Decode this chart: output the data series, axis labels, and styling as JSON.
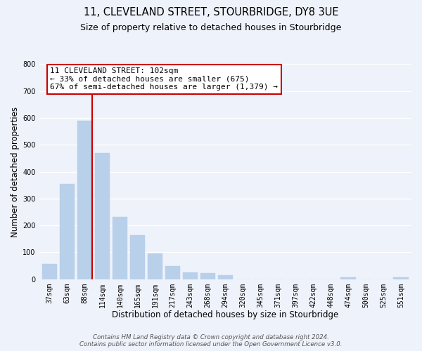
{
  "title": "11, CLEVELAND STREET, STOURBRIDGE, DY8 3UE",
  "subtitle": "Size of property relative to detached houses in Stourbridge",
  "xlabel": "Distribution of detached houses by size in Stourbridge",
  "ylabel": "Number of detached properties",
  "bar_labels": [
    "37sqm",
    "63sqm",
    "88sqm",
    "114sqm",
    "140sqm",
    "165sqm",
    "191sqm",
    "217sqm",
    "243sqm",
    "268sqm",
    "294sqm",
    "320sqm",
    "345sqm",
    "371sqm",
    "397sqm",
    "422sqm",
    "448sqm",
    "474sqm",
    "500sqm",
    "525sqm",
    "551sqm"
  ],
  "bar_values": [
    58,
    355,
    590,
    470,
    232,
    163,
    95,
    48,
    26,
    22,
    16,
    0,
    0,
    0,
    0,
    0,
    0,
    8,
    0,
    0,
    8
  ],
  "bar_color": "#b8d0ea",
  "vline_color": "#cc0000",
  "vline_bar_index": 2,
  "ylim": [
    0,
    800
  ],
  "yticks": [
    0,
    100,
    200,
    300,
    400,
    500,
    600,
    700,
    800
  ],
  "annotation_title": "11 CLEVELAND STREET: 102sqm",
  "annotation_line1": "← 33% of detached houses are smaller (675)",
  "annotation_line2": "67% of semi-detached houses are larger (1,379) →",
  "annotation_box_color": "#ffffff",
  "annotation_box_edge": "#cc0000",
  "footnote1": "Contains HM Land Registry data © Crown copyright and database right 2024.",
  "footnote2": "Contains public sector information licensed under the Open Government Licence v3.0.",
  "background_color": "#eef2fa",
  "grid_color": "#ffffff",
  "title_fontsize": 10.5,
  "subtitle_fontsize": 9,
  "xlabel_fontsize": 8.5,
  "ylabel_fontsize": 8.5,
  "tick_fontsize": 7,
  "footnote_fontsize": 6.2,
  "ann_fontsize": 8
}
